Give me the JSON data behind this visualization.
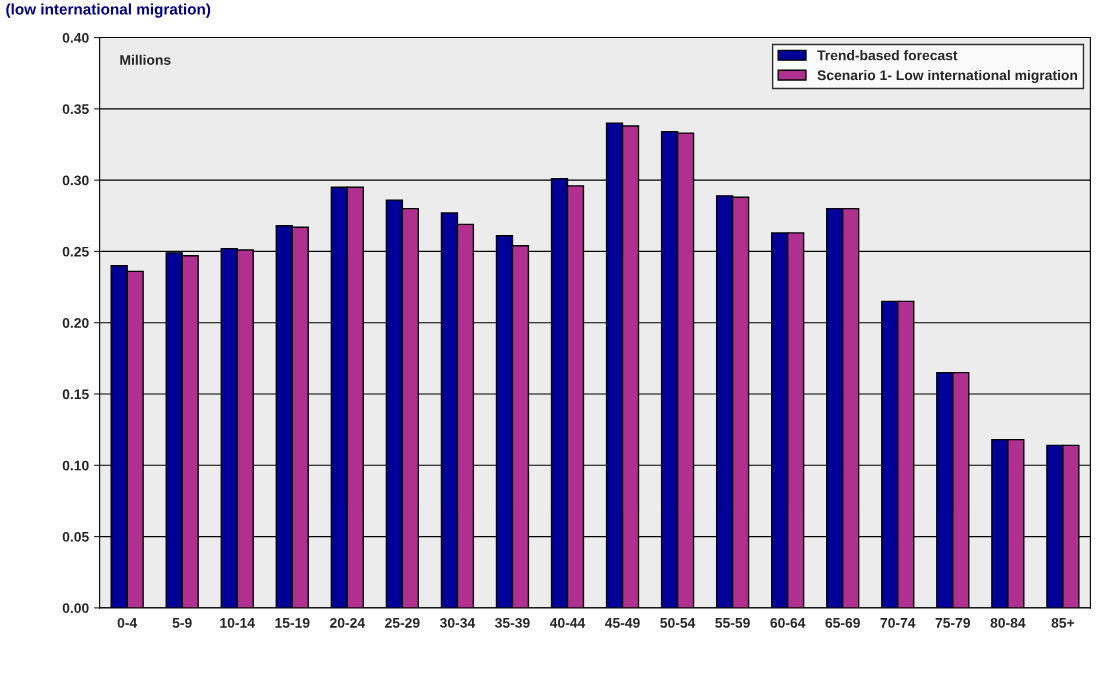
{
  "chart_data": {
    "type": "bar",
    "title": "(low international migration)",
    "ylabel": "Millions",
    "categories": [
      "0-4",
      "5-9",
      "10-14",
      "15-19",
      "20-24",
      "25-29",
      "30-34",
      "35-39",
      "40-44",
      "45-49",
      "50-54",
      "55-59",
      "60-64",
      "65-69",
      "70-74",
      "75-79",
      "80-84",
      "85+"
    ],
    "series": [
      {
        "name": "Trend-based forecast",
        "color": "#000099",
        "values": [
          0.24,
          0.249,
          0.252,
          0.268,
          0.295,
          0.286,
          0.277,
          0.261,
          0.301,
          0.34,
          0.334,
          0.289,
          0.263,
          0.28,
          0.215,
          0.165,
          0.118,
          0.114
        ]
      },
      {
        "name": "Scenario 1- Low international migration",
        "color": "#b0308f",
        "values": [
          0.236,
          0.247,
          0.251,
          0.267,
          0.295,
          0.28,
          0.269,
          0.254,
          0.296,
          0.338,
          0.333,
          0.288,
          0.263,
          0.28,
          0.215,
          0.165,
          0.118,
          0.114
        ]
      }
    ],
    "ylim": [
      0,
      0.4
    ],
    "yticks": [
      {
        "value": 0,
        "label": "0.00"
      },
      {
        "value": 0.05,
        "label": "0.05"
      },
      {
        "value": 0.1,
        "label": "0.10"
      },
      {
        "value": 0.15,
        "label": "0.15"
      },
      {
        "value": 0.2,
        "label": "0.20"
      },
      {
        "value": 0.25,
        "label": "0.25"
      },
      {
        "value": 0.3,
        "label": "0.30"
      },
      {
        "value": 0.35,
        "label": "0.35"
      },
      {
        "value": 0.4,
        "label": "0.40"
      }
    ],
    "grid": "y",
    "legend": "top right"
  }
}
